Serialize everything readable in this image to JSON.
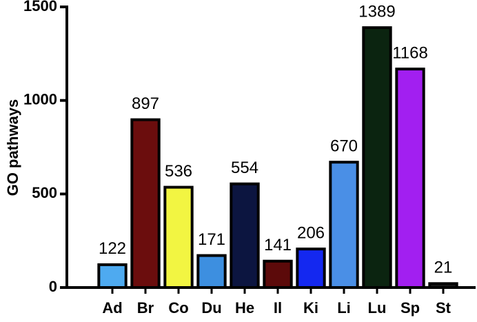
{
  "chart_data": {
    "type": "bar",
    "y_label": "GO pathways",
    "categories": [
      "Ad",
      "Br",
      "Co",
      "Du",
      "He",
      "Il",
      "Ki",
      "Li",
      "Lu",
      "Sp",
      "St"
    ],
    "values": [
      122,
      897,
      536,
      171,
      554,
      141,
      206,
      670,
      1389,
      1168,
      21
    ],
    "colors": [
      "#4eaaf0",
      "#6b0d0d",
      "#f2f542",
      "#3d8fe0",
      "#0c1540",
      "#5c0a0a",
      "#1428f0",
      "#4a8fe6",
      "#0b2410",
      "#a21ff0",
      "#1a1a1a"
    ],
    "ylim": [
      0,
      1500
    ],
    "yticks": [
      0,
      500,
      1000,
      1500
    ]
  }
}
